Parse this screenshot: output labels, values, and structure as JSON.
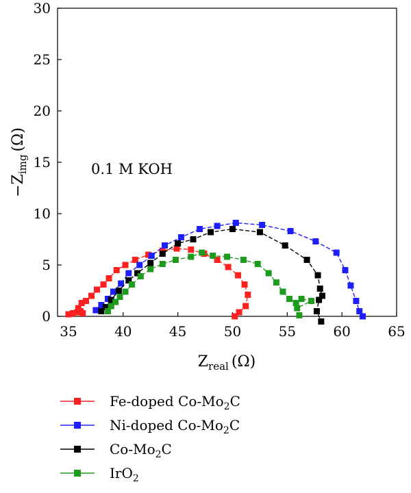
{
  "chart_data": {
    "type": "scatter",
    "xlabel": "Z",
    "xlabel_sub": "real",
    "xlabel_unit": "(Ω)",
    "ylabel_prefix": "−Z",
    "ylabel_sub": "img",
    "ylabel_unit": "(Ω)",
    "annotation": "0.1 M KOH",
    "xlim": [
      34,
      65
    ],
    "ylim": [
      0,
      30
    ],
    "x_ticks": [
      35,
      40,
      45,
      50,
      55,
      60,
      65
    ],
    "y_ticks": [
      0,
      5,
      10,
      15,
      20,
      25,
      30
    ],
    "grid": false,
    "legend_position": "bottom",
    "series": [
      {
        "name": "Fe-doped Co-Mo2C",
        "label_main": "Fe-doped Co-Mo",
        "label_sub": "2",
        "label_tail": "C",
        "color": "#ff2020",
        "points": [
          [
            35.0,
            0.2
          ],
          [
            35.4,
            0.3
          ],
          [
            35.8,
            0.4
          ],
          [
            36.1,
            0.5
          ],
          [
            36.3,
            0.3
          ],
          [
            35.9,
            0.8
          ],
          [
            36.2,
            1.3
          ],
          [
            36.6,
            1.5
          ],
          [
            37.1,
            2.0
          ],
          [
            37.6,
            2.6
          ],
          [
            38.2,
            3.1
          ],
          [
            38.7,
            3.7
          ],
          [
            39.4,
            4.5
          ],
          [
            40.2,
            5.0
          ],
          [
            41.1,
            5.5
          ],
          [
            42.3,
            6.0
          ],
          [
            43.6,
            6.4
          ],
          [
            44.9,
            6.6
          ],
          [
            46.2,
            6.5
          ],
          [
            47.4,
            6.1
          ],
          [
            48.6,
            5.5
          ],
          [
            49.6,
            4.8
          ],
          [
            50.5,
            4.0
          ],
          [
            51.1,
            3.1
          ],
          [
            51.4,
            2.1
          ],
          [
            51.2,
            1.0
          ],
          [
            50.6,
            0.4
          ],
          [
            50.2,
            0.0
          ]
        ]
      },
      {
        "name": "Ni-doped Co-Mo2C",
        "label_main": "Ni-doped Co-Mo",
        "label_sub": "2",
        "label_tail": "C",
        "color": "#1e1eff",
        "points": [
          [
            37.5,
            0.6
          ],
          [
            38.0,
            1.1
          ],
          [
            38.6,
            1.7
          ],
          [
            39.1,
            2.4
          ],
          [
            39.8,
            3.2
          ],
          [
            40.5,
            4.2
          ],
          [
            41.5,
            5.0
          ],
          [
            42.6,
            5.9
          ],
          [
            43.8,
            6.9
          ],
          [
            45.3,
            7.7
          ],
          [
            47.0,
            8.5
          ],
          [
            48.6,
            8.8
          ],
          [
            50.3,
            9.1
          ],
          [
            52.7,
            8.9
          ],
          [
            55.3,
            8.3
          ],
          [
            57.6,
            7.3
          ],
          [
            59.5,
            6.2
          ],
          [
            60.3,
            4.5
          ],
          [
            60.8,
            3.0
          ],
          [
            61.3,
            1.5
          ],
          [
            61.6,
            0.5
          ],
          [
            61.9,
            0.0
          ]
        ]
      },
      {
        "name": "Co-Mo2C",
        "label_main": "Co-Mo",
        "label_sub": "2",
        "label_tail": "C",
        "color": "#000000",
        "points": [
          [
            38.0,
            0.5
          ],
          [
            38.4,
            0.9
          ],
          [
            38.9,
            1.6
          ],
          [
            39.6,
            2.5
          ],
          [
            40.5,
            3.5
          ],
          [
            41.3,
            4.2
          ],
          [
            42.5,
            5.2
          ],
          [
            43.6,
            6.1
          ],
          [
            45.0,
            7.1
          ],
          [
            46.4,
            7.5
          ],
          [
            48.0,
            8.2
          ],
          [
            50.0,
            8.5
          ],
          [
            52.5,
            8.2
          ],
          [
            54.8,
            6.9
          ],
          [
            56.8,
            5.5
          ],
          [
            57.8,
            4.0
          ],
          [
            58.0,
            2.7
          ],
          [
            58.2,
            2.0
          ],
          [
            57.9,
            1.6
          ],
          [
            57.7,
            0.5
          ],
          [
            58.1,
            -0.5
          ]
        ]
      },
      {
        "name": "IrO2",
        "label_main": "IrO",
        "label_sub": "2",
        "label_tail": "",
        "color": "#1e9a1e",
        "points": [
          [
            38.6,
            0.5
          ],
          [
            38.9,
            1.0
          ],
          [
            39.3,
            1.4
          ],
          [
            39.7,
            1.9
          ],
          [
            40.2,
            2.4
          ],
          [
            40.8,
            3.1
          ],
          [
            41.6,
            3.9
          ],
          [
            42.5,
            4.6
          ],
          [
            43.6,
            5.1
          ],
          [
            44.8,
            5.5
          ],
          [
            46.2,
            5.8
          ],
          [
            47.2,
            6.2
          ],
          [
            48.2,
            5.9
          ],
          [
            49.5,
            5.8
          ],
          [
            51.0,
            5.5
          ],
          [
            52.3,
            5.1
          ],
          [
            53.3,
            4.2
          ],
          [
            54.0,
            3.3
          ],
          [
            54.6,
            2.4
          ],
          [
            55.2,
            1.7
          ],
          [
            55.8,
            1.3
          ],
          [
            56.3,
            1.7
          ],
          [
            57.2,
            1.5
          ],
          [
            55.9,
            0.8
          ],
          [
            56.1,
            0.1
          ]
        ]
      }
    ]
  }
}
